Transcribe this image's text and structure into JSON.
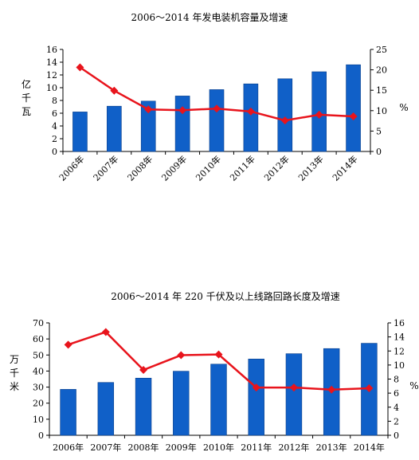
{
  "chart_data": [
    {
      "type": "bar",
      "title": "2006～2014 年发电装机容量及增速",
      "categories": [
        "2006年",
        "2007年",
        "2008年",
        "2009年",
        "2010年",
        "2011年",
        "2012年",
        "2013年",
        "2014年"
      ],
      "ylabel": "亿千瓦",
      "y2label": "%",
      "ylim": [
        0,
        16
      ],
      "y2lim": [
        0,
        25
      ],
      "yticks": [
        "0",
        "2",
        "4",
        "6",
        "8",
        "10",
        "12",
        "14",
        "16"
      ],
      "y2ticks": [
        "0",
        "5",
        "10",
        "15",
        "20",
        "25"
      ],
      "series": [
        {
          "type": "bar",
          "axis": "left",
          "values": [
            6.2,
            7.1,
            7.9,
            8.7,
            9.7,
            10.6,
            11.4,
            12.5,
            13.6
          ]
        },
        {
          "type": "line",
          "axis": "right",
          "values": [
            20.6,
            14.9,
            10.3,
            10.1,
            10.5,
            9.8,
            7.6,
            9.0,
            8.6
          ]
        }
      ],
      "grid": false,
      "bar_color": "#1060c8",
      "line_color": "#e8141c"
    },
    {
      "type": "bar",
      "title": "2006～2014 年 220 千伏及以上线路回路长度及增速",
      "categories": [
        "2006年",
        "2007年",
        "2008年",
        "2009年",
        "2010年",
        "2011年",
        "2012年",
        "2013年",
        "2014年"
      ],
      "ylabel": "万千米",
      "y2label": "%",
      "ylim": [
        0,
        70
      ],
      "y2lim": [
        0,
        16
      ],
      "yticks": [
        "0",
        "10",
        "20",
        "30",
        "40",
        "50",
        "60",
        "70"
      ],
      "y2ticks": [
        "0",
        "2",
        "4",
        "6",
        "8",
        "10",
        "12",
        "14",
        "16"
      ],
      "series": [
        {
          "type": "bar",
          "axis": "left",
          "values": [
            28.6,
            32.9,
            35.6,
            39.9,
            44.3,
            47.5,
            50.8,
            54.0,
            57.3
          ]
        },
        {
          "type": "line",
          "axis": "right",
          "values": [
            12.9,
            14.7,
            9.3,
            11.4,
            11.5,
            6.8,
            6.8,
            6.5,
            6.7
          ]
        }
      ],
      "grid": false,
      "bar_color": "#1060c8",
      "line_color": "#e8141c"
    }
  ]
}
